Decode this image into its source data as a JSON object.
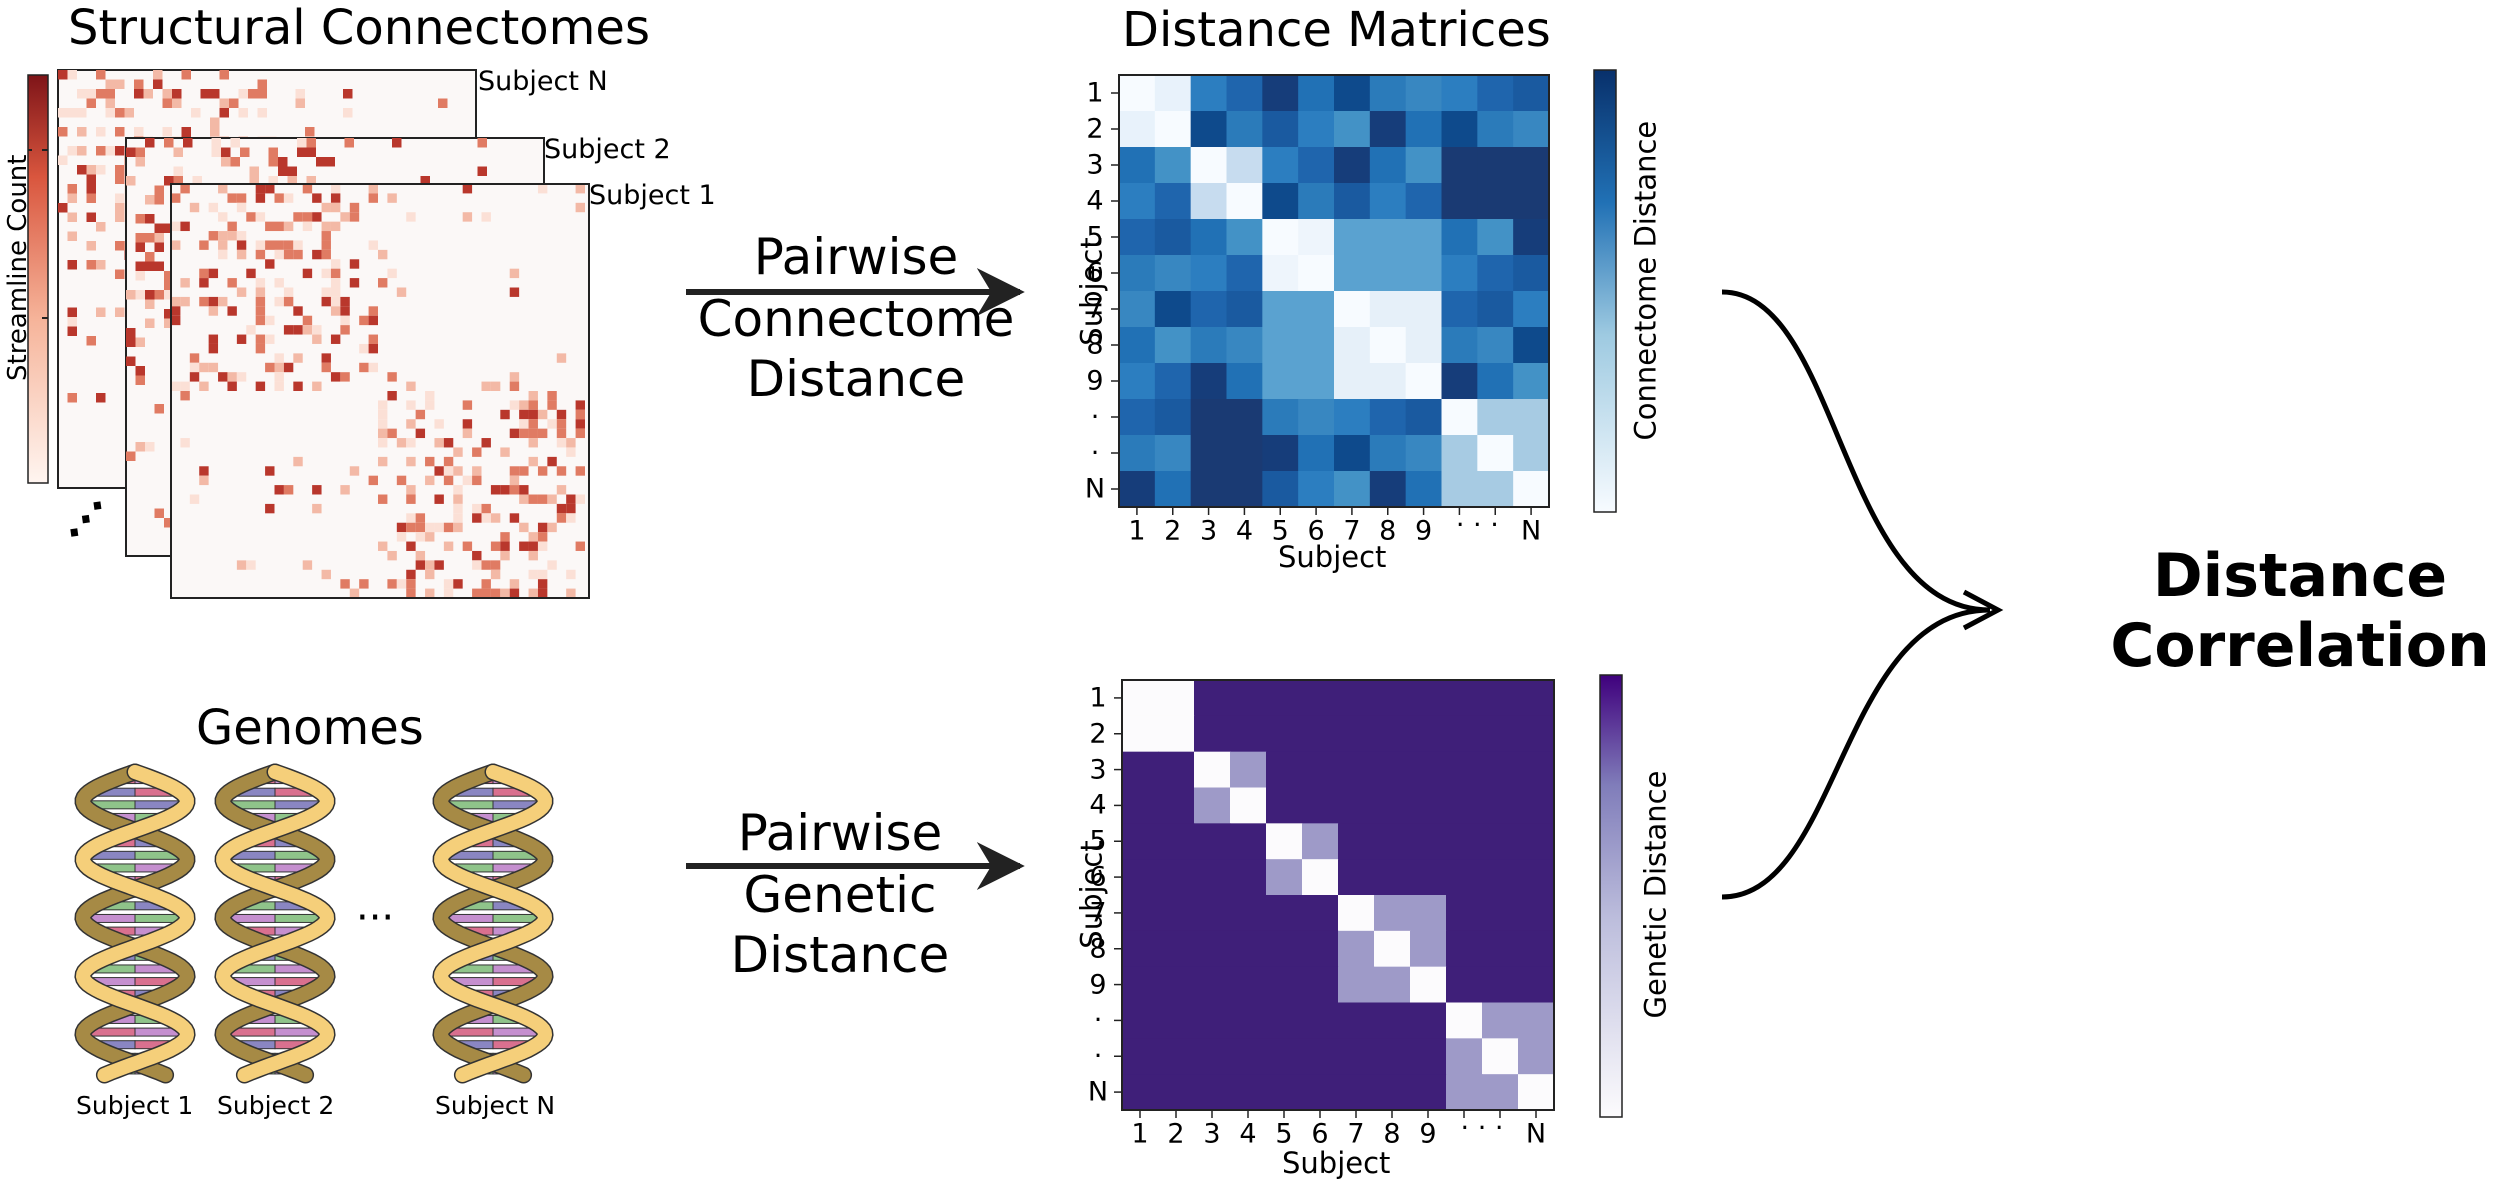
{
  "connectomes": {
    "title": "Structural Connectomes",
    "stack_labels": [
      "Subject N",
      "Subject 2",
      "Subject 1"
    ],
    "colorbar_label": "Streamline Count",
    "ellipsis": "⋰"
  },
  "genomes": {
    "title": "Genomes",
    "subjects": [
      "Subject 1",
      "Subject 2",
      "Subject N"
    ],
    "ellipsis": "···"
  },
  "arrows": {
    "top": [
      "Pairwise",
      "Connectome",
      "Distance"
    ],
    "bottom": [
      "Pairwise",
      "Genetic",
      "Distance"
    ]
  },
  "matrices": {
    "title": "Distance Matrices",
    "tick_labels": [
      "1",
      "2",
      "3",
      "4",
      "5",
      "6",
      "7",
      "8",
      "9",
      "·",
      "·",
      "N"
    ],
    "x_ticks": [
      "1",
      "2",
      "3",
      "4",
      "5",
      "6",
      "7",
      "8",
      "9",
      "· · ·",
      "N"
    ],
    "xlabel": "Subject",
    "ylabel": "Subject",
    "connectome": {
      "colorbar_label": "Connectome Distance",
      "colormap": [
        "#f7fbff",
        "#6baed6",
        "#08306b"
      ]
    },
    "genetic": {
      "colorbar_label": "Genetic Distance",
      "colormap": [
        "#fcfbfd",
        "#9e9ac8",
        "#3f007d"
      ]
    }
  },
  "result": {
    "lines": [
      "Distance",
      "Correlation"
    ]
  },
  "colors": {
    "connectome_dot": "#cb4335",
    "helix_strand": "#f5cf7a",
    "helix_back": "#a68a45",
    "base_colors": [
      "#d9708f",
      "#8a86c2",
      "#8fc48a",
      "#c58fcf"
    ]
  }
}
